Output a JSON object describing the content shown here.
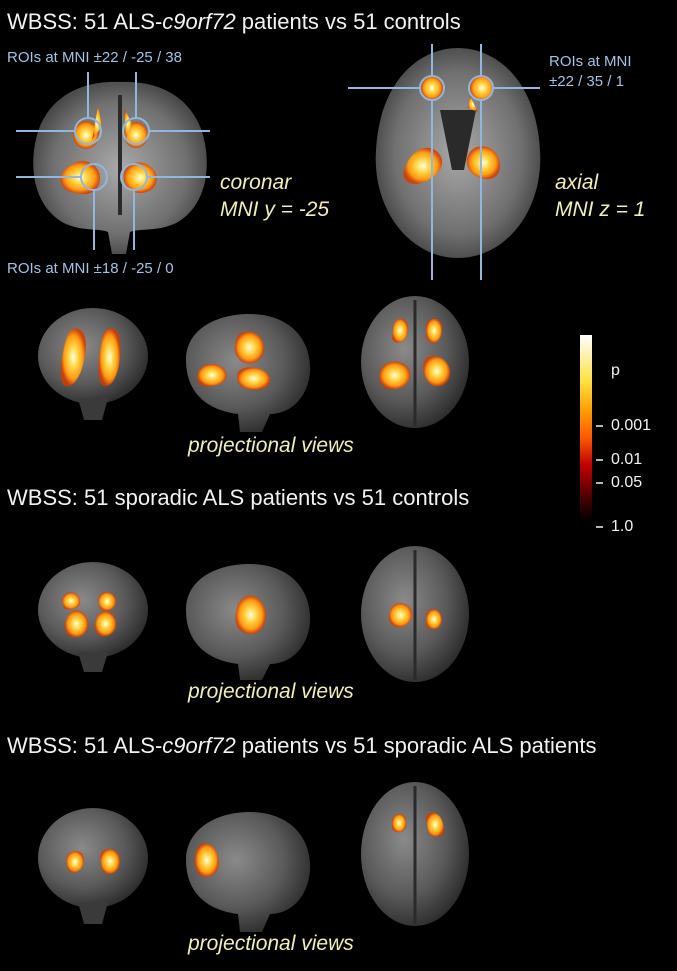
{
  "panels": [
    {
      "title_prefix": "WBSS: 51 ALS-",
      "title_gene": "c9orf72",
      "title_suffix": " patients vs 51 controls",
      "projection_label": "projectional views"
    },
    {
      "title_text": "WBSS: 51 sporadic ALS patients vs 51 controls",
      "projection_label": "projectional views"
    },
    {
      "title_prefix": "WBSS: 51 ALS-",
      "title_gene": "c9orf72",
      "title_suffix": " patients vs 51 sporadic ALS patients",
      "projection_label": "projectional views"
    }
  ],
  "roi_labels": {
    "top_left": "ROIs at MNI ±22 / -25 / 38",
    "bottom_left": "ROIs at MNI ±18 / -25 / 0",
    "right_line1": "ROIs at MNI",
    "right_line2": "±22 / 35 / 1"
  },
  "slice_labels": {
    "coronal_line1": "coronar",
    "coronal_line2": "MNI y = -25",
    "axial_line1": "axial",
    "axial_line2": "MNI z = 1"
  },
  "colorbar": {
    "title": "p",
    "ticks": [
      "0.001",
      "0.01",
      "0.05",
      "1.0"
    ]
  },
  "colors": {
    "roi_line": "#8fb7df",
    "label_yellow": "#f3efb0",
    "hot_low": "#8b0000",
    "hot_mid": "#ff7a00",
    "hot_high": "#ffffff"
  }
}
